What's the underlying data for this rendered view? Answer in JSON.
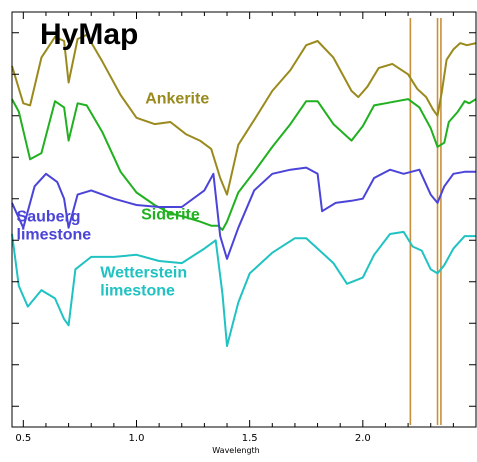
{
  "chart_data": {
    "type": "line",
    "title": "HyMap",
    "xlabel": "Wavelength",
    "ylabel": "",
    "xlim": [
      0.45,
      2.5
    ],
    "ylim": [
      0,
      10
    ],
    "grid": false,
    "xticks": [
      0.5,
      1.0,
      1.5,
      2.0
    ],
    "xtick_labels": [
      "0.5",
      "1.0",
      "1.5",
      "2.0"
    ],
    "yticks": [
      0.5,
      1.5,
      2.5,
      3.5,
      4.5,
      5.5,
      6.5,
      7.5,
      8.5,
      9.5
    ],
    "vlines": {
      "color": "#c8903c",
      "x": [
        2.21,
        2.33,
        2.345
      ]
    },
    "series": [
      {
        "name": "Ankerite",
        "color": "#9a8a1e",
        "x": [
          0.45,
          0.5,
          0.53,
          0.58,
          0.64,
          0.68,
          0.7,
          0.74,
          0.78,
          0.85,
          0.93,
          1.0,
          1.08,
          1.15,
          1.22,
          1.28,
          1.33,
          1.37,
          1.4,
          1.45,
          1.52,
          1.6,
          1.68,
          1.75,
          1.8,
          1.87,
          1.95,
          1.98,
          2.02,
          2.07,
          2.13,
          2.2,
          2.24,
          2.28,
          2.31,
          2.33,
          2.35,
          2.37,
          2.4,
          2.43,
          2.46,
          2.5
        ],
        "y": [
          8.7,
          7.8,
          7.75,
          8.9,
          9.4,
          9.3,
          8.3,
          9.35,
          9.45,
          8.8,
          8.0,
          7.45,
          7.3,
          7.35,
          7.05,
          6.9,
          6.7,
          6.0,
          5.6,
          6.8,
          7.4,
          8.1,
          8.6,
          9.2,
          9.3,
          8.9,
          8.1,
          7.95,
          8.2,
          8.65,
          8.75,
          8.5,
          8.15,
          7.95,
          7.65,
          7.5,
          8.1,
          8.85,
          9.1,
          9.25,
          9.2,
          9.25
        ]
      },
      {
        "name": "Siderite",
        "color": "#20b020",
        "x": [
          0.45,
          0.48,
          0.53,
          0.58,
          0.64,
          0.68,
          0.7,
          0.74,
          0.78,
          0.85,
          0.93,
          1.0,
          1.08,
          1.15,
          1.22,
          1.28,
          1.33,
          1.36,
          1.38,
          1.4,
          1.45,
          1.52,
          1.6,
          1.68,
          1.75,
          1.8,
          1.87,
          1.95,
          2.0,
          2.05,
          2.1,
          2.15,
          2.2,
          2.25,
          2.3,
          2.33,
          2.36,
          2.38,
          2.42,
          2.45,
          2.47,
          2.5
        ],
        "y": [
          7.9,
          7.6,
          6.45,
          6.6,
          7.85,
          7.7,
          6.9,
          7.8,
          7.75,
          7.1,
          6.15,
          5.65,
          5.35,
          5.15,
          5.05,
          4.95,
          4.85,
          4.85,
          4.75,
          4.95,
          5.65,
          6.15,
          6.75,
          7.3,
          7.85,
          7.85,
          7.3,
          6.9,
          7.25,
          7.75,
          7.8,
          7.85,
          7.9,
          7.7,
          7.2,
          6.75,
          6.85,
          7.35,
          7.6,
          7.85,
          7.8,
          7.9
        ]
      },
      {
        "name": "Sauberg limestone",
        "color": "#4b44d8",
        "x": [
          0.45,
          0.5,
          0.55,
          0.6,
          0.65,
          0.68,
          0.7,
          0.74,
          0.8,
          0.9,
          1.0,
          1.1,
          1.2,
          1.3,
          1.34,
          1.37,
          1.4,
          1.45,
          1.52,
          1.6,
          1.68,
          1.75,
          1.8,
          1.82,
          1.88,
          1.95,
          2.0,
          2.05,
          2.12,
          2.18,
          2.25,
          2.3,
          2.33,
          2.36,
          2.4,
          2.45,
          2.5
        ],
        "y": [
          5.4,
          4.8,
          5.8,
          6.1,
          5.9,
          5.5,
          4.8,
          5.6,
          5.7,
          5.5,
          5.35,
          5.3,
          5.3,
          5.7,
          6.1,
          4.6,
          4.05,
          4.8,
          5.7,
          6.1,
          6.2,
          6.25,
          6.1,
          5.2,
          5.4,
          5.45,
          5.5,
          6.0,
          6.2,
          6.1,
          6.2,
          5.6,
          5.4,
          5.8,
          6.1,
          6.15,
          6.15
        ]
      },
      {
        "name": "Wetterstein limestone",
        "color": "#20c2c2",
        "x": [
          0.45,
          0.48,
          0.52,
          0.58,
          0.64,
          0.68,
          0.7,
          0.73,
          0.8,
          0.9,
          1.0,
          1.1,
          1.2,
          1.3,
          1.35,
          1.38,
          1.4,
          1.45,
          1.5,
          1.6,
          1.7,
          1.75,
          1.8,
          1.87,
          1.93,
          2.0,
          2.05,
          2.12,
          2.18,
          2.22,
          2.26,
          2.3,
          2.33,
          2.36,
          2.4,
          2.45,
          2.5
        ],
        "y": [
          4.65,
          3.4,
          2.9,
          3.3,
          3.1,
          2.6,
          2.45,
          3.8,
          4.1,
          4.1,
          4.15,
          4.0,
          3.95,
          4.3,
          4.5,
          3.2,
          1.95,
          3.0,
          3.7,
          4.2,
          4.55,
          4.55,
          4.3,
          3.95,
          3.45,
          3.6,
          4.15,
          4.65,
          4.7,
          4.35,
          4.25,
          3.8,
          3.7,
          3.9,
          4.3,
          4.6,
          4.6
        ]
      }
    ],
    "annotations": [
      {
        "lines": [
          "Ankerite"
        ],
        "color": "#9a8a1e",
        "x": 1.18,
        "y": 7.8,
        "anchor": "middle"
      },
      {
        "lines": [
          "Siderite"
        ],
        "color": "#20b020",
        "x": 1.15,
        "y": 5.0,
        "anchor": "middle"
      },
      {
        "lines": [
          "Sauberg",
          "limestone"
        ],
        "color": "#4b44d8",
        "x": 0.47,
        "y": 4.95,
        "anchor": "start"
      },
      {
        "lines": [
          "Wetterstein",
          "limestone"
        ],
        "color": "#20c2c2",
        "x": 0.84,
        "y": 3.6,
        "anchor": "start"
      }
    ]
  }
}
